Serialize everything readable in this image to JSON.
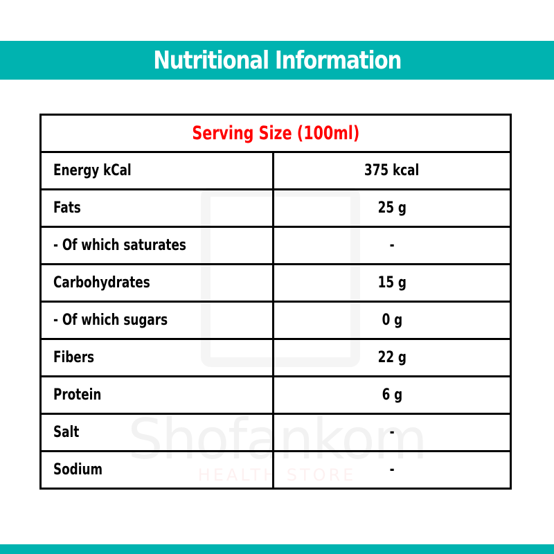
{
  "header": {
    "title": "Nutritional Information"
  },
  "colors": {
    "teal": "#00b3b0",
    "serving_red": "#ff0000"
  },
  "watermark": {
    "brand": "Shofankom",
    "tagline": "HEALTH STORE"
  },
  "table": {
    "serving_size": "Serving Size (100ml)",
    "rows": [
      {
        "label": "Energy kCal",
        "value": "375 kcal"
      },
      {
        "label": "Fats",
        "value": "25 g"
      },
      {
        "label": "- Of which saturates",
        "value": "-"
      },
      {
        "label": "Carbohydrates",
        "value": "15 g"
      },
      {
        "label": "- Of which sugars",
        "value": "0 g"
      },
      {
        "label": "Fibers",
        "value": "22 g"
      },
      {
        "label": "Protein",
        "value": "6 g"
      },
      {
        "label": "Salt",
        "value": "-"
      },
      {
        "label": "Sodium",
        "value": "-"
      }
    ]
  }
}
